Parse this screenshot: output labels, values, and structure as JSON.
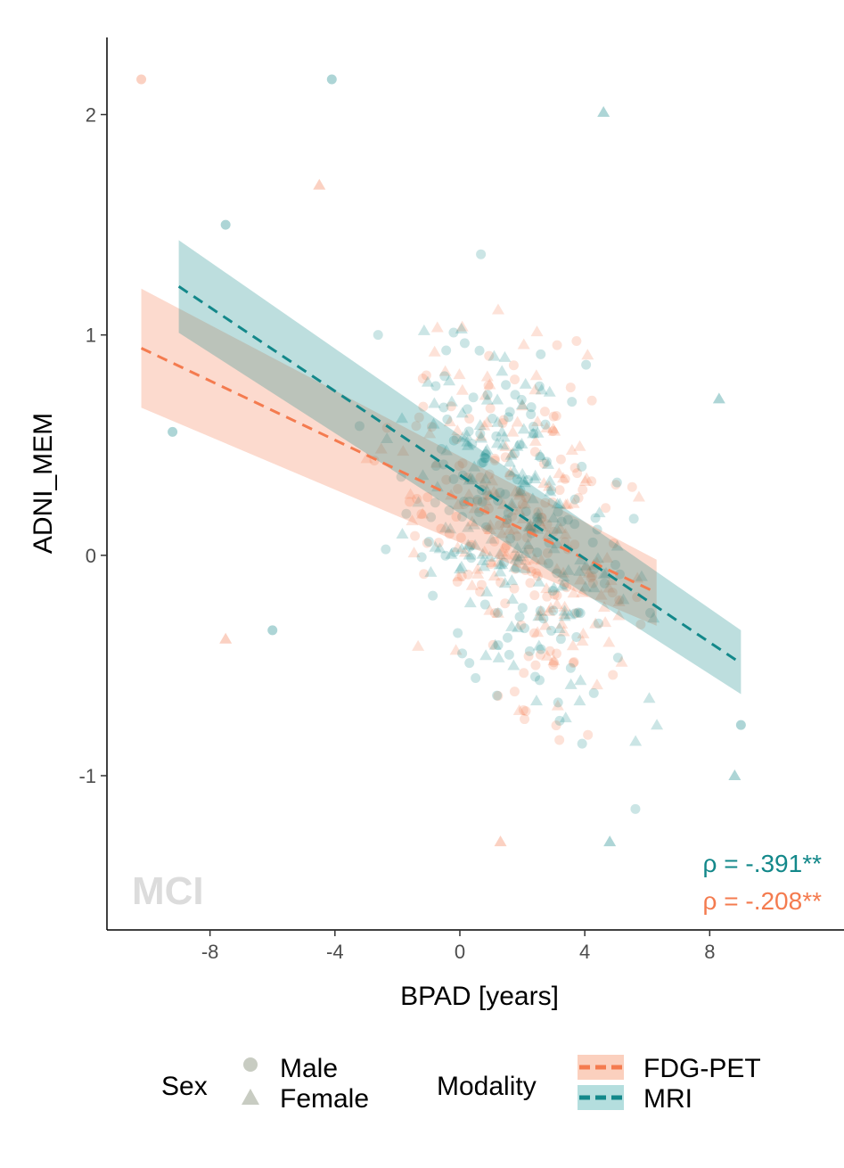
{
  "chart_data": {
    "type": "scatter",
    "xlabel": "BPAD [years]",
    "ylabel": "ADNI_MEM",
    "xlim": [
      -11.3,
      12.3
    ],
    "ylim": [
      -1.7,
      2.35
    ],
    "x_ticks": [
      -8,
      -4,
      0,
      4,
      8
    ],
    "x_tick_labels": [
      "-8",
      "-4",
      "0",
      "4",
      "8"
    ],
    "y_ticks": [
      -1,
      0,
      1,
      2
    ],
    "y_tick_labels": [
      "-1",
      "0",
      "1",
      "2"
    ],
    "grid": false,
    "panel_label": "MCI",
    "colors": {
      "fdg_pet": "#f47b4f",
      "fdg_pet_fill": "#fbb99f",
      "mri": "#13888a",
      "mri_fill": "#7cc4c4",
      "shape_legend": "#c8ccc2"
    },
    "series": [
      {
        "name": "FDG-PET",
        "color": "#f47b4f",
        "fit": {
          "x": [
            -10.2,
            6.3
          ],
          "y": [
            0.94,
            -0.17
          ]
        },
        "band": {
          "x": [
            -10.2,
            6.3
          ],
          "upper": [
            1.21,
            -0.02
          ],
          "lower": [
            0.67,
            -0.32
          ]
        },
        "annotation": "ρ = -.208**"
      },
      {
        "name": "MRI",
        "color": "#13888a",
        "fit": {
          "x": [
            -9.0,
            9.0
          ],
          "y": [
            1.22,
            -0.49
          ]
        },
        "band": {
          "x": [
            -9.0,
            9.0
          ],
          "upper": [
            1.43,
            -0.34
          ],
          "lower": [
            1.01,
            -0.63
          ]
        },
        "annotation": "ρ = -.391**"
      }
    ],
    "highlighted_points": [
      {
        "x": -10.2,
        "y": 2.16,
        "shape": "circle",
        "series": "FDG-PET"
      },
      {
        "x": -4.1,
        "y": 2.16,
        "shape": "circle",
        "series": "MRI"
      },
      {
        "x": -7.5,
        "y": 1.5,
        "shape": "circle",
        "series": "MRI"
      },
      {
        "x": -4.5,
        "y": 1.68,
        "shape": "triangle",
        "series": "FDG-PET"
      },
      {
        "x": -9.2,
        "y": 0.56,
        "shape": "circle",
        "series": "MRI"
      },
      {
        "x": -7.5,
        "y": -0.38,
        "shape": "triangle",
        "series": "FDG-PET"
      },
      {
        "x": -6.0,
        "y": -0.34,
        "shape": "circle",
        "series": "MRI"
      },
      {
        "x": 4.6,
        "y": 2.01,
        "shape": "triangle",
        "series": "MRI"
      },
      {
        "x": 9.0,
        "y": -0.77,
        "shape": "circle",
        "series": "MRI"
      },
      {
        "x": 8.8,
        "y": -1.0,
        "shape": "triangle",
        "series": "MRI"
      },
      {
        "x": 4.8,
        "y": -1.3,
        "shape": "triangle",
        "series": "MRI"
      },
      {
        "x": 1.3,
        "y": -1.3,
        "shape": "triangle",
        "series": "FDG-PET"
      },
      {
        "x": 8.3,
        "y": 0.71,
        "shape": "triangle",
        "series": "MRI"
      }
    ]
  },
  "legend": {
    "sex_title": "Sex",
    "sex_items": [
      {
        "label": "Male",
        "shape": "circle"
      },
      {
        "label": "Female",
        "shape": "triangle"
      }
    ],
    "modality_title": "Modality",
    "modality_items": [
      {
        "label": "FDG-PET",
        "series": "FDG-PET"
      },
      {
        "label": "MRI",
        "series": "MRI"
      }
    ]
  }
}
